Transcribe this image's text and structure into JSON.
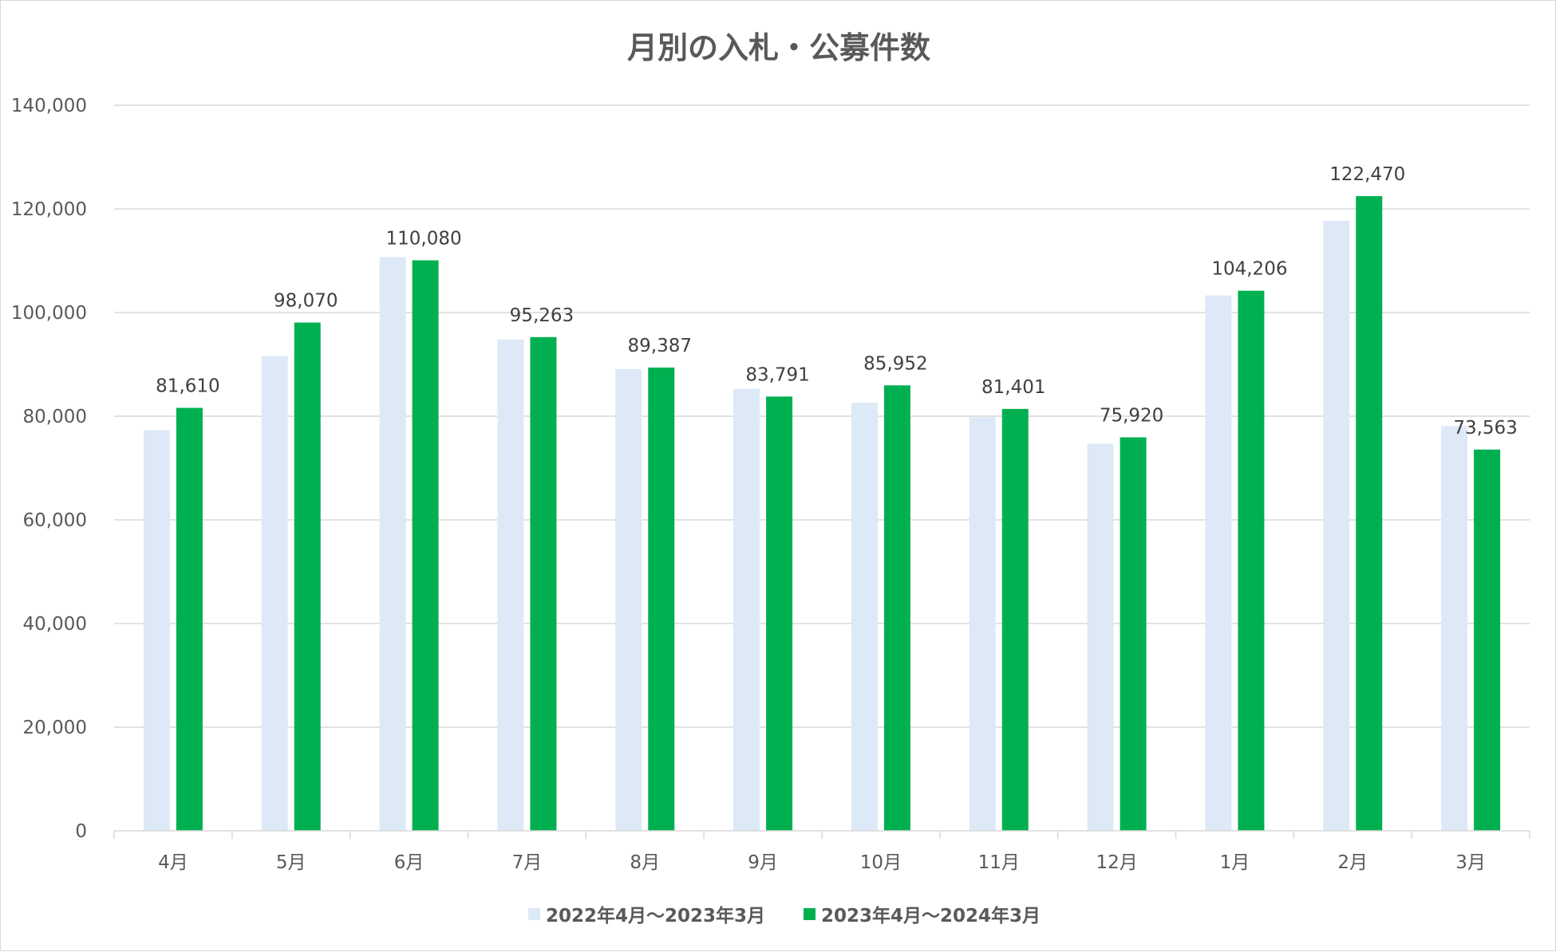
{
  "chart_data": {
    "type": "bar",
    "title": "月別の入札・公募件数",
    "xlabel": "",
    "ylabel": "",
    "ylim": [
      0,
      140000
    ],
    "yticks": [
      0,
      20000,
      40000,
      60000,
      80000,
      100000,
      120000,
      140000
    ],
    "ytick_labels": [
      "0",
      "20,000",
      "40,000",
      "60,000",
      "80,000",
      "100,000",
      "120,000",
      "140,000"
    ],
    "grid": true,
    "legend_position": "bottom",
    "categories": [
      "4月",
      "5月",
      "6月",
      "7月",
      "8月",
      "9月",
      "10月",
      "11月",
      "12月",
      "1月",
      "2月",
      "3月"
    ],
    "series": [
      {
        "name": "2022年4月～2023年3月",
        "color": "#dde9f6",
        "values": [
          77300,
          91600,
          110700,
          94800,
          89100,
          85300,
          82600,
          79800,
          74700,
          103300,
          117700,
          78100
        ],
        "labels": []
      },
      {
        "name": "2023年4月～2024年3月",
        "color": "#00b050",
        "values": [
          81610,
          98070,
          110080,
          95263,
          89387,
          83791,
          85952,
          81401,
          75920,
          104206,
          122470,
          73563
        ],
        "labels": [
          "81,610",
          "98,070",
          "110,080",
          "95,263",
          "89,387",
          "83,791",
          "85,952",
          "81,401",
          "75,920",
          "104,206",
          "122,470",
          "73,563"
        ]
      }
    ]
  }
}
